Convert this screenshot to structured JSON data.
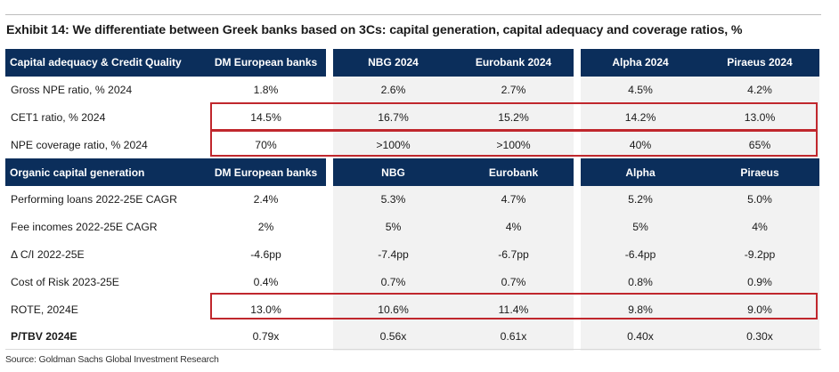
{
  "title": "Exhibit 14: We differentiate between Greek banks based on 3Cs: capital generation, capital adequacy and coverage ratios, %",
  "sections": [
    {
      "header": [
        "Capital adequacy & Credit Quality",
        "DM European banks",
        "NBG 2024",
        "Eurobank 2024",
        "Alpha 2024",
        "Piraeus 2024"
      ],
      "rows": [
        {
          "label": "Gross NPE ratio, % 2024",
          "values": [
            "1.8%",
            "2.6%",
            "2.7%",
            "4.5%",
            "4.2%"
          ]
        },
        {
          "label": "CET1 ratio, % 2024",
          "values": [
            "14.5%",
            "16.7%",
            "15.2%",
            "14.2%",
            "13.0%"
          ]
        },
        {
          "label": "NPE coverage ratio, % 2024",
          "values": [
            "70%",
            ">100%",
            ">100%",
            "40%",
            "65%"
          ]
        }
      ]
    },
    {
      "header": [
        "Organic capital generation",
        "DM European banks",
        "NBG",
        "Eurobank",
        "Alpha",
        "Piraeus"
      ],
      "rows": [
        {
          "label": "Performing loans 2022-25E CAGR",
          "values": [
            "2.4%",
            "5.3%",
            "4.7%",
            "5.2%",
            "5.0%"
          ]
        },
        {
          "label": "Fee incomes 2022-25E CAGR",
          "values": [
            "2%",
            "5%",
            "4%",
            "5%",
            "4%"
          ]
        },
        {
          "label": "Δ C/I 2022-25E",
          "values": [
            "-4.6pp",
            "-7.4pp",
            "-6.7pp",
            "-6.4pp",
            "-9.2pp"
          ]
        },
        {
          "label": "Cost of Risk 2023-25E",
          "values": [
            "0.4%",
            "0.7%",
            "0.7%",
            "0.8%",
            "0.9%"
          ]
        },
        {
          "label": "ROTE, 2024E",
          "values": [
            "13.0%",
            "10.6%",
            "11.4%",
            "9.8%",
            "9.0%"
          ]
        },
        {
          "label": "P/TBV 2024E",
          "values": [
            "0.79x",
            "0.56x",
            "0.61x",
            "0.40x",
            "0.30x"
          ]
        }
      ]
    }
  ],
  "source": "Source: Goldman Sachs Global Investment Research",
  "colors": {
    "header_bg": "#0b2e5b",
    "highlight_border": "#c0272d",
    "shaded_cell": "#f2f2f2"
  }
}
